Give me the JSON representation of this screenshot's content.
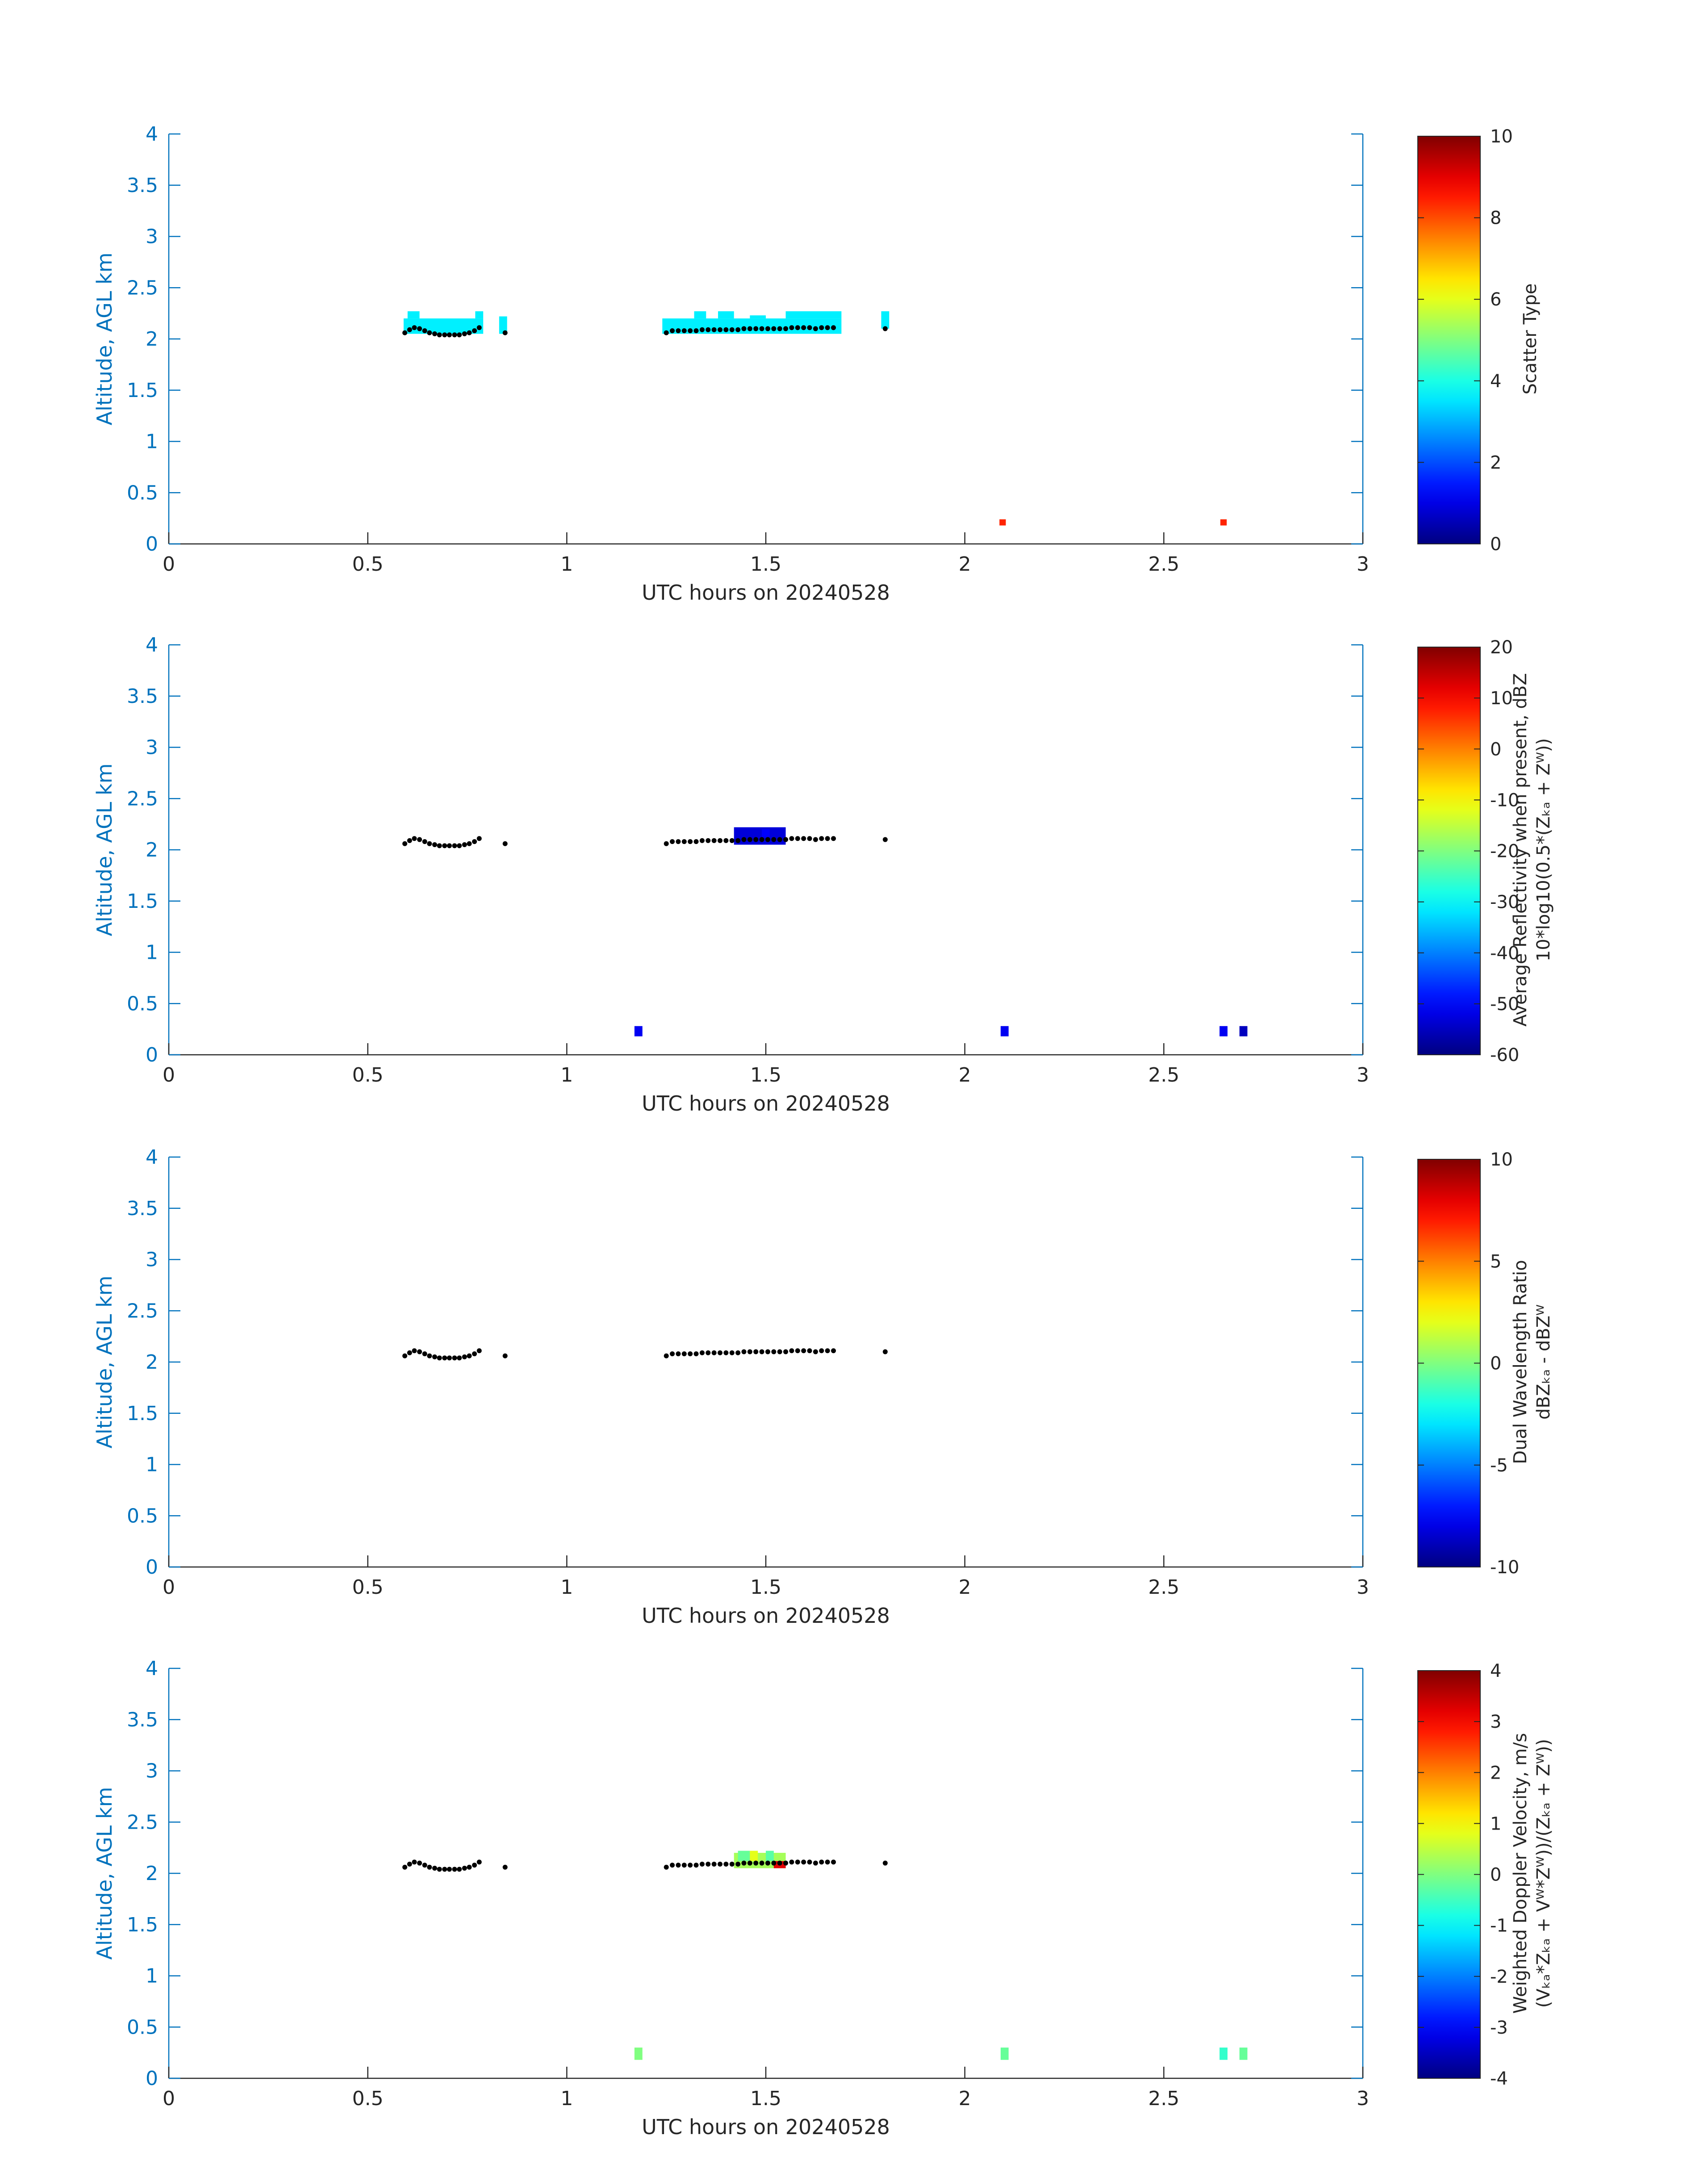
{
  "colors": {
    "axis": "#262626",
    "yaxis": "#0072BD",
    "scatter_lidar": "#000000"
  },
  "colormap": "jet",
  "chart_data": [
    {
      "type": "heatmap",
      "xlabel": "UTC hours on 20240528",
      "ylabel": "Altitude, AGL km",
      "xlim": [
        0,
        3
      ],
      "ylim": [
        0,
        4
      ],
      "xticks": [
        0,
        0.5,
        1,
        1.5,
        2,
        2.5,
        3
      ],
      "xtick_labels": [
        "0",
        "0.5",
        "1",
        "1.5",
        "2",
        "2.5",
        "3"
      ],
      "yticks": [
        0,
        0.5,
        1,
        1.5,
        2,
        2.5,
        3,
        3.5,
        4
      ],
      "ytick_labels": [
        "0",
        "0.5",
        "1",
        "1.5",
        "2",
        "2.5",
        "3",
        "3.5",
        "4"
      ],
      "colorbar": {
        "lines": [
          "Scatter Type"
        ],
        "clim": [
          0,
          10
        ],
        "ticks": [
          0,
          2,
          4,
          6,
          8,
          10
        ],
        "tick_labels": [
          "0",
          "2",
          "4",
          "6",
          "8",
          "10"
        ]
      },
      "cells": [
        {
          "x0": 0.59,
          "x1": 0.79,
          "y0": 2.05,
          "y1": 2.2,
          "v": 3.6
        },
        {
          "x0": 0.6,
          "x1": 0.63,
          "y0": 2.2,
          "y1": 2.27,
          "v": 3.6
        },
        {
          "x0": 0.77,
          "x1": 0.79,
          "y0": 2.2,
          "y1": 2.27,
          "v": 3.6
        },
        {
          "x0": 0.83,
          "x1": 0.85,
          "y0": 2.05,
          "y1": 2.22,
          "v": 3.6
        },
        {
          "x0": 1.24,
          "x1": 1.69,
          "y0": 2.05,
          "y1": 2.2,
          "v": 3.6
        },
        {
          "x0": 1.32,
          "x1": 1.35,
          "y0": 2.2,
          "y1": 2.27,
          "v": 3.6
        },
        {
          "x0": 1.38,
          "x1": 1.42,
          "y0": 2.2,
          "y1": 2.27,
          "v": 3.6
        },
        {
          "x0": 1.46,
          "x1": 1.5,
          "y0": 2.2,
          "y1": 2.23,
          "v": 3.6
        },
        {
          "x0": 1.55,
          "x1": 1.69,
          "y0": 2.2,
          "y1": 2.27,
          "v": 3.6
        },
        {
          "x0": 1.79,
          "x1": 1.81,
          "y0": 2.1,
          "y1": 2.27,
          "v": 3.6
        },
        {
          "x0": 2.087,
          "x1": 2.103,
          "y0": 0.18,
          "y1": 0.24,
          "v": 8.4
        },
        {
          "x0": 2.642,
          "x1": 2.658,
          "y0": 0.18,
          "y1": 0.24,
          "v": 8.4
        }
      ]
    },
    {
      "type": "heatmap",
      "xlabel": "UTC hours on 20240528",
      "ylabel": "Altitude, AGL km",
      "xlim": [
        0,
        3
      ],
      "ylim": [
        0,
        4
      ],
      "xticks": [
        0,
        0.5,
        1,
        1.5,
        2,
        2.5,
        3
      ],
      "xtick_labels": [
        "0",
        "0.5",
        "1",
        "1.5",
        "2",
        "2.5",
        "3"
      ],
      "yticks": [
        0,
        0.5,
        1,
        1.5,
        2,
        2.5,
        3,
        3.5,
        4
      ],
      "ytick_labels": [
        "0",
        "0.5",
        "1",
        "1.5",
        "2",
        "2.5",
        "3",
        "3.5",
        "4"
      ],
      "colorbar": {
        "lines": [
          "Average Reflectivity when present, dBZ",
          "10*log10(0.5*(Zₖₐ + Zᵂ))"
        ],
        "clim": [
          -60,
          20
        ],
        "ticks": [
          -60,
          -50,
          -40,
          -30,
          -20,
          -10,
          0,
          10,
          20
        ],
        "tick_labels": [
          "-60",
          "-50",
          "-40",
          "-30",
          "-20",
          "-10",
          "0",
          "10",
          "20"
        ]
      },
      "cells": [
        {
          "x0": 1.42,
          "x1": 1.55,
          "y0": 2.05,
          "y1": 2.22,
          "v": -53
        },
        {
          "x0": 1.49,
          "x1": 1.51,
          "y0": 2.12,
          "y1": 2.2,
          "v": -50
        },
        {
          "x0": 1.17,
          "x1": 1.19,
          "y0": 0.18,
          "y1": 0.28,
          "v": -51
        },
        {
          "x0": 2.09,
          "x1": 2.11,
          "y0": 0.18,
          "y1": 0.28,
          "v": -51
        },
        {
          "x0": 2.64,
          "x1": 2.66,
          "y0": 0.18,
          "y1": 0.28,
          "v": -51
        },
        {
          "x0": 2.69,
          "x1": 2.71,
          "y0": 0.18,
          "y1": 0.28,
          "v": -55
        }
      ]
    },
    {
      "type": "heatmap",
      "xlabel": "UTC hours on 20240528",
      "ylabel": "Altitude, AGL km",
      "xlim": [
        0,
        3
      ],
      "ylim": [
        0,
        4
      ],
      "xticks": [
        0,
        0.5,
        1,
        1.5,
        2,
        2.5,
        3
      ],
      "xtick_labels": [
        "0",
        "0.5",
        "1",
        "1.5",
        "2",
        "2.5",
        "3"
      ],
      "yticks": [
        0,
        0.5,
        1,
        1.5,
        2,
        2.5,
        3,
        3.5,
        4
      ],
      "ytick_labels": [
        "0",
        "0.5",
        "1",
        "1.5",
        "2",
        "2.5",
        "3",
        "3.5",
        "4"
      ],
      "colorbar": {
        "lines": [
          "Dual Wavelength Ratio",
          "dBZₖₐ - dBZᵂ"
        ],
        "clim": [
          -10,
          10
        ],
        "ticks": [
          -10,
          -5,
          0,
          5,
          10
        ],
        "tick_labels": [
          "-10",
          "-5",
          "0",
          "5",
          "10"
        ]
      },
      "cells": []
    },
    {
      "type": "heatmap",
      "xlabel": "UTC hours on 20240528",
      "ylabel": "Altitude, AGL km",
      "xlim": [
        0,
        3
      ],
      "ylim": [
        0,
        4
      ],
      "xticks": [
        0,
        0.5,
        1,
        1.5,
        2,
        2.5,
        3
      ],
      "xtick_labels": [
        "0",
        "0.5",
        "1",
        "1.5",
        "2",
        "2.5",
        "3"
      ],
      "yticks": [
        0,
        0.5,
        1,
        1.5,
        2,
        2.5,
        3,
        3.5,
        4
      ],
      "ytick_labels": [
        "0",
        "0.5",
        "1",
        "1.5",
        "2",
        "2.5",
        "3",
        "3.5",
        "4"
      ],
      "colorbar": {
        "lines": [
          "Weighted Doppler Velocity, m/s",
          "(Vₖₐ*Zₖₐ + Vᵂ*Zᵂ))/(Zₖₐ + Zᵂ))"
        ],
        "clim": [
          -4,
          4
        ],
        "ticks": [
          -4,
          -3,
          -2,
          -1,
          0,
          1,
          2,
          3,
          4
        ],
        "tick_labels": [
          "-4",
          "-3",
          "-2",
          "-1",
          "0",
          "1",
          "2",
          "3",
          "4"
        ]
      },
      "cells": [
        {
          "x0": 1.42,
          "x1": 1.55,
          "y0": 2.05,
          "y1": 2.2,
          "v": 0.3
        },
        {
          "x0": 1.43,
          "x1": 1.46,
          "y0": 2.12,
          "y1": 2.22,
          "v": -0.2
        },
        {
          "x0": 1.46,
          "x1": 1.48,
          "y0": 2.12,
          "y1": 2.22,
          "v": 0.8
        },
        {
          "x0": 1.5,
          "x1": 1.52,
          "y0": 2.12,
          "y1": 2.22,
          "v": -0.3
        },
        {
          "x0": 1.52,
          "x1": 1.55,
          "y0": 2.05,
          "y1": 2.12,
          "v": 3.2
        },
        {
          "x0": 1.17,
          "x1": 1.19,
          "y0": 0.18,
          "y1": 0.3,
          "v": 0.0
        },
        {
          "x0": 2.09,
          "x1": 2.11,
          "y0": 0.18,
          "y1": 0.3,
          "v": -0.2
        },
        {
          "x0": 2.64,
          "x1": 2.66,
          "y0": 0.18,
          "y1": 0.3,
          "v": -0.6
        },
        {
          "x0": 2.69,
          "x1": 2.71,
          "y0": 0.18,
          "y1": 0.3,
          "v": -0.2
        }
      ]
    }
  ],
  "scatter_points": {
    "x": [
      0.593,
      0.605,
      0.617,
      0.63,
      0.643,
      0.655,
      0.668,
      0.68,
      0.693,
      0.705,
      0.718,
      0.73,
      0.743,
      0.755,
      0.768,
      0.78,
      0.845,
      1.25,
      1.265,
      1.28,
      1.295,
      1.31,
      1.325,
      1.34,
      1.355,
      1.37,
      1.385,
      1.4,
      1.415,
      1.43,
      1.445,
      1.46,
      1.475,
      1.49,
      1.505,
      1.52,
      1.535,
      1.55,
      1.565,
      1.58,
      1.595,
      1.61,
      1.625,
      1.64,
      1.655,
      1.67,
      1.8
    ],
    "y": [
      2.06,
      2.09,
      2.11,
      2.1,
      2.08,
      2.06,
      2.05,
      2.04,
      2.04,
      2.04,
      2.04,
      2.04,
      2.05,
      2.06,
      2.08,
      2.11,
      2.06,
      2.06,
      2.08,
      2.08,
      2.08,
      2.08,
      2.08,
      2.09,
      2.09,
      2.09,
      2.09,
      2.09,
      2.09,
      2.09,
      2.1,
      2.1,
      2.1,
      2.1,
      2.1,
      2.1,
      2.1,
      2.1,
      2.11,
      2.11,
      2.11,
      2.11,
      2.1,
      2.11,
      2.11,
      2.11,
      2.1
    ]
  }
}
